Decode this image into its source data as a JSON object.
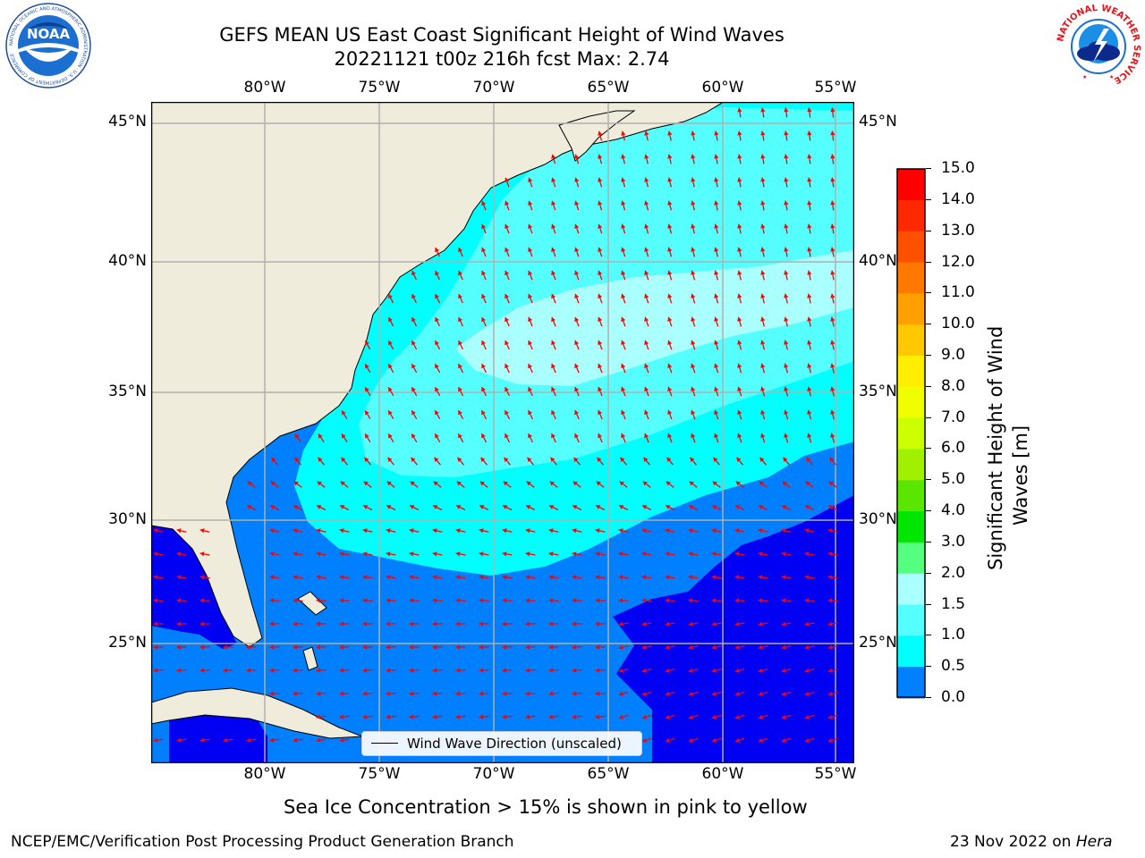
{
  "title": {
    "line1": "GEFS MEAN US East Coast Significant Height of Wind Waves",
    "line2": "20221121 t00z 216h fcst   Max: 2.74"
  },
  "map": {
    "lon_labels": [
      "80°W",
      "75°W",
      "70°W",
      "65°W",
      "60°W",
      "55°W"
    ],
    "lat_labels": [
      "45°N",
      "40°N",
      "35°N",
      "30°N",
      "25°N"
    ],
    "lon_range": [
      -85,
      -54.5
    ],
    "lat_range": [
      20.5,
      45.8
    ],
    "colors": {
      "land": "#efecdb",
      "bin_0": "#0000f2",
      "bin_05": "#0080ff",
      "bin_1": "#00ffff",
      "bin_15": "#55ffff",
      "bin_2": "#aaffff",
      "arrow": "#ff0000",
      "grid": "#b0b0b0"
    }
  },
  "legend": {
    "label": "Wind Wave Direction (unscaled)"
  },
  "colorbar": {
    "label_line1": "Significant Height of Wind",
    "label_line2": "Waves [m]",
    "ticks": [
      "15.0",
      "14.0",
      "13.0",
      "12.0",
      "11.0",
      "10.0",
      "9.0",
      "8.0",
      "7.0",
      "6.0",
      "5.0",
      "4.0",
      "3.0",
      "2.0",
      "1.5",
      "1.0",
      "0.5",
      "0.0"
    ],
    "colors": [
      "#ff0000",
      "#ff2800",
      "#ff5000",
      "#ff7800",
      "#ffa000",
      "#ffc800",
      "#ffee00",
      "#f0ff00",
      "#ccff00",
      "#a0f000",
      "#5ae600",
      "#00e600",
      "#55ff80",
      "#aaffff",
      "#55ffff",
      "#00ffff",
      "#0080ff",
      "#0000f2"
    ]
  },
  "footer": {
    "sea_ice": "Sea Ice Concentration > 15% is shown in pink to yellow",
    "left": "NCEP/EMC/Verification Post Processing Product Generation Branch",
    "right_prefix": "23 Nov 2022 on ",
    "right_host": "Hera"
  },
  "logos": {
    "noaa_text": "NOAA",
    "noaa_ring": "NATIONAL OCEANIC AND ATMOSPHERIC ADMINISTRATION · U.S. DEPARTMENT OF COMMERCE",
    "nws_ring": "NATIONAL WEATHER SERVICE"
  }
}
